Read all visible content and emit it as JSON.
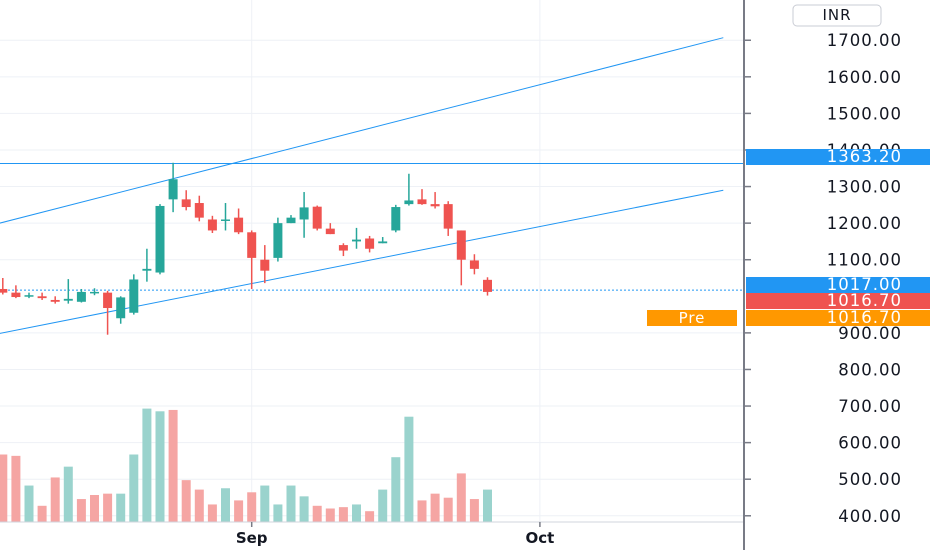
{
  "chart_data": {
    "type": "candlestick",
    "currency": "INR",
    "y_axis": {
      "ticks": [
        "400.00",
        "500.00",
        "600.00",
        "700.00",
        "800.00",
        "900.00",
        "1100.00",
        "1200.00",
        "1300.00",
        "1400.00",
        "1500.00",
        "1600.00",
        "1700.00"
      ],
      "tick_values": [
        400,
        500,
        600,
        700,
        800,
        900,
        1100,
        1200,
        1300,
        1400,
        1500,
        1600,
        1700
      ],
      "range": [
        383,
        1810
      ]
    },
    "x_axis": {
      "labels": [
        "Sep",
        "Oct"
      ],
      "label_positions": [
        19,
        41
      ],
      "range": [
        -0.5,
        56.5
      ]
    },
    "price_tags": [
      {
        "value": "1363.20",
        "price": 1363.2,
        "color": "#2196f3"
      },
      {
        "value": "1017.00",
        "price": 1017.0,
        "color": "#2196f3"
      },
      {
        "value": "1016.70",
        "price": 1016.7,
        "color": "#ef5350"
      },
      {
        "value": "1016.70",
        "price": 1016.7,
        "color": "#ff9800",
        "badge": "Pre"
      }
    ],
    "colors": {
      "up": "#26a69a",
      "down": "#ef5350",
      "up_volume": "#9ad3cd",
      "down_volume": "#f5a5a3",
      "line": "#2196f3",
      "grid": "#eef1f6"
    },
    "horizontal_lines": [
      1363.2
    ],
    "trend_lines": [
      {
        "start": [
          -1,
          1193
        ],
        "end": [
          55,
          1707
        ]
      },
      {
        "start": [
          -1,
          893
        ],
        "end": [
          55,
          1290
        ]
      }
    ],
    "candles": [
      {
        "o": 1020,
        "h": 1050,
        "l": 1005,
        "c": 1010
      },
      {
        "o": 1010,
        "h": 1030,
        "l": 995,
        "c": 998
      },
      {
        "o": 1000,
        "h": 1010,
        "l": 995,
        "c": 1003
      },
      {
        "o": 1000,
        "h": 1010,
        "l": 990,
        "c": 995
      },
      {
        "o": 990,
        "h": 1000,
        "l": 980,
        "c": 985
      },
      {
        "o": 988,
        "h": 1047,
        "l": 980,
        "c": 993
      },
      {
        "o": 985,
        "h": 1020,
        "l": 983,
        "c": 1012
      },
      {
        "o": 1012,
        "h": 1022,
        "l": 1003,
        "c": 1012
      },
      {
        "o": 1010,
        "h": 1015,
        "l": 895,
        "c": 968
      },
      {
        "o": 940,
        "h": 1000,
        "l": 925,
        "c": 997
      },
      {
        "o": 955,
        "h": 1060,
        "l": 950,
        "c": 1046
      },
      {
        "o": 1070,
        "h": 1130,
        "l": 1040,
        "c": 1075
      },
      {
        "o": 1065,
        "h": 1252,
        "l": 1060,
        "c": 1247
      },
      {
        "o": 1265,
        "h": 1365,
        "l": 1230,
        "c": 1320
      },
      {
        "o": 1265,
        "h": 1290,
        "l": 1235,
        "c": 1244
      },
      {
        "o": 1255,
        "h": 1275,
        "l": 1205,
        "c": 1215
      },
      {
        "o": 1210,
        "h": 1220,
        "l": 1173,
        "c": 1180
      },
      {
        "o": 1208,
        "h": 1255,
        "l": 1180,
        "c": 1210
      },
      {
        "o": 1215,
        "h": 1240,
        "l": 1170,
        "c": 1175
      },
      {
        "o": 1175,
        "h": 1180,
        "l": 1020,
        "c": 1105
      },
      {
        "o": 1100,
        "h": 1140,
        "l": 1036,
        "c": 1070
      },
      {
        "o": 1105,
        "h": 1215,
        "l": 1095,
        "c": 1200
      },
      {
        "o": 1200,
        "h": 1222,
        "l": 1200,
        "c": 1215
      },
      {
        "o": 1210,
        "h": 1285,
        "l": 1160,
        "c": 1243
      },
      {
        "o": 1245,
        "h": 1248,
        "l": 1180,
        "c": 1185
      },
      {
        "o": 1185,
        "h": 1200,
        "l": 1170,
        "c": 1170
      },
      {
        "o": 1140,
        "h": 1145,
        "l": 1110,
        "c": 1125
      },
      {
        "o": 1150,
        "h": 1187,
        "l": 1130,
        "c": 1155
      },
      {
        "o": 1158,
        "h": 1165,
        "l": 1120,
        "c": 1130
      },
      {
        "o": 1145,
        "h": 1162,
        "l": 1145,
        "c": 1150
      },
      {
        "o": 1180,
        "h": 1250,
        "l": 1175,
        "c": 1244
      },
      {
        "o": 1252,
        "h": 1335,
        "l": 1248,
        "c": 1262
      },
      {
        "o": 1265,
        "h": 1293,
        "l": 1250,
        "c": 1252
      },
      {
        "o": 1252,
        "h": 1285,
        "l": 1240,
        "c": 1246
      },
      {
        "o": 1252,
        "h": 1260,
        "l": 1165,
        "c": 1185
      },
      {
        "o": 1180,
        "h": 1180,
        "l": 1030,
        "c": 1100
      },
      {
        "o": 1098,
        "h": 1115,
        "l": 1060,
        "c": 1075
      },
      {
        "o": 1045,
        "h": 1052,
        "l": 1002,
        "c": 1012
      }
    ],
    "volume_colors": [
      "down",
      "down",
      "up",
      "down",
      "down",
      "up",
      "down",
      "down",
      "down",
      "up",
      "up",
      "up",
      "up",
      "down",
      "down",
      "down",
      "down",
      "up",
      "down",
      "down",
      "up",
      "up",
      "up",
      "up",
      "down",
      "down",
      "down",
      "up",
      "down",
      "up",
      "up",
      "up",
      "down",
      "down",
      "down",
      "down",
      "down",
      "up"
    ],
    "volume_levels": [
      0.5,
      0.49,
      0.27,
      0.12,
      0.33,
      0.41,
      0.17,
      0.2,
      0.21,
      0.21,
      0.5,
      0.84,
      0.82,
      0.83,
      0.31,
      0.24,
      0.13,
      0.25,
      0.16,
      0.22,
      0.27,
      0.13,
      0.27,
      0.19,
      0.12,
      0.1,
      0.11,
      0.13,
      0.08,
      0.24,
      0.48,
      0.78,
      0.16,
      0.21,
      0.18,
      0.36,
      0.17,
      0.24
    ]
  }
}
